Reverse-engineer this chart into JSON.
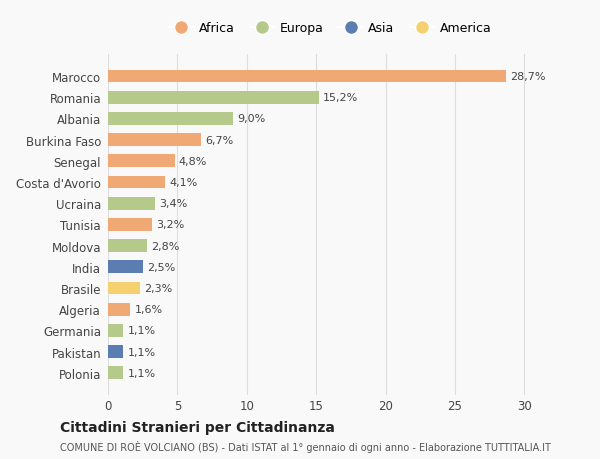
{
  "countries": [
    "Marocco",
    "Romania",
    "Albania",
    "Burkina Faso",
    "Senegal",
    "Costa d'Avorio",
    "Ucraina",
    "Tunisia",
    "Moldova",
    "India",
    "Brasile",
    "Algeria",
    "Germania",
    "Pakistan",
    "Polonia"
  ],
  "values": [
    28.7,
    15.2,
    9.0,
    6.7,
    4.8,
    4.1,
    3.4,
    3.2,
    2.8,
    2.5,
    2.3,
    1.6,
    1.1,
    1.1,
    1.1
  ],
  "labels": [
    "28,7%",
    "15,2%",
    "9,0%",
    "6,7%",
    "4,8%",
    "4,1%",
    "3,4%",
    "3,2%",
    "2,8%",
    "2,5%",
    "2,3%",
    "1,6%",
    "1,1%",
    "1,1%",
    "1,1%"
  ],
  "continents": [
    "Africa",
    "Europa",
    "Europa",
    "Africa",
    "Africa",
    "Africa",
    "Europa",
    "Africa",
    "Europa",
    "Asia",
    "America",
    "Africa",
    "Europa",
    "Asia",
    "Europa"
  ],
  "colors": {
    "Africa": "#F0A875",
    "Europa": "#B5C98A",
    "Asia": "#5B7DB1",
    "America": "#F5D06E"
  },
  "legend_order": [
    "Africa",
    "Europa",
    "Asia",
    "America"
  ],
  "title": "Cittadini Stranieri per Cittadinanza",
  "subtitle": "COMUNE DI ROÈ VOLCIANO (BS) - Dati ISTAT al 1° gennaio di ogni anno - Elaborazione TUTTITALIA.IT",
  "xlim": [
    0,
    32
  ],
  "xticks": [
    0,
    5,
    10,
    15,
    20,
    25,
    30
  ],
  "background_color": "#f9f9f9",
  "grid_color": "#dddddd"
}
